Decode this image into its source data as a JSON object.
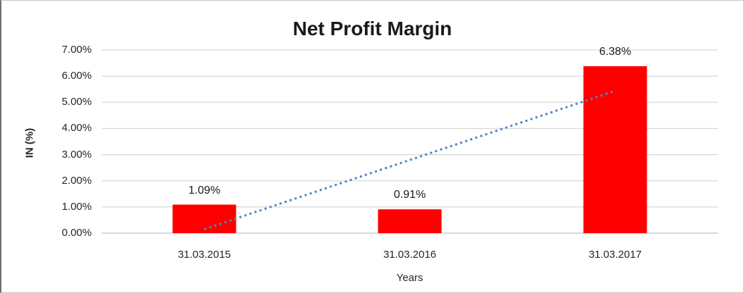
{
  "chart_data": {
    "type": "bar",
    "title": "Net Profit Margin",
    "xlabel": "Years",
    "ylabel": "IN (%)",
    "categories": [
      "31.03.2015",
      "31.03.2016",
      "31.03.2017"
    ],
    "series": [
      {
        "name": "Net Profit Margin",
        "values": [
          1.09,
          0.91,
          6.38
        ]
      }
    ],
    "data_labels": [
      "1.09%",
      "0.91%",
      "6.38%"
    ],
    "ylim": [
      0,
      7
    ],
    "ytick_step": 1,
    "ytick_labels": [
      "0.00%",
      "1.00%",
      "2.00%",
      "3.00%",
      "4.00%",
      "5.00%",
      "6.00%",
      "7.00%"
    ],
    "grid": true,
    "legend": "none",
    "bar_color": "#ff0000",
    "gridline_color": "#d9d9d9",
    "axis_line_color": "#bfbfbf",
    "trendline": {
      "type": "linear",
      "style": "dotted",
      "color": "#4a86c8",
      "start_value": 0.15,
      "end_value": 5.44
    }
  }
}
